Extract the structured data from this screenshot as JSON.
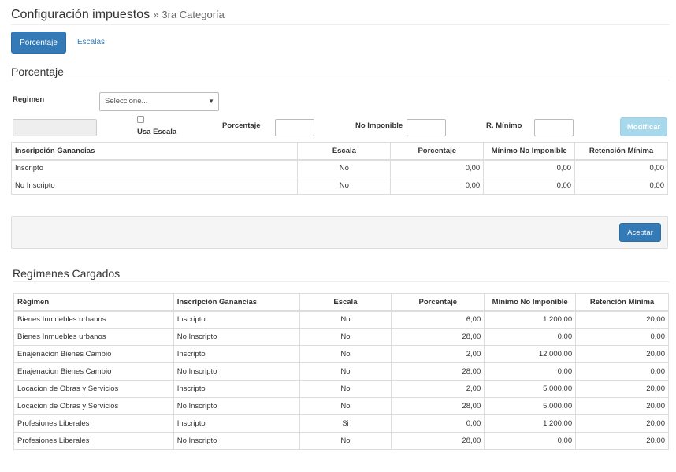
{
  "header": {
    "title": "Configuración impuestos",
    "subtitle": "» 3ra Categoría"
  },
  "tabs": [
    {
      "label": "Porcentaje",
      "active": true
    },
    {
      "label": "Escalas",
      "active": false
    }
  ],
  "section_porcentaje": {
    "title": "Porcentaje"
  },
  "form": {
    "regimen_label": "Regimen",
    "regimen_select": "Seleccione...",
    "usa_escala_label": "Usa Escala",
    "porcentaje_label": "Porcentaje",
    "no_imponible_label": "No Imponible",
    "r_minimo_label": "R. Mínimo",
    "modificar_label": "Modificar"
  },
  "tabla_inscripcion": {
    "headers": [
      "Inscripción Ganancias",
      "Escala",
      "Porcentaje",
      "Mínimo No Imponible",
      "Retención Mínima"
    ],
    "rows": [
      [
        "Inscripto",
        "No",
        "0,00",
        "0,00",
        "0,00"
      ],
      [
        "No Inscripto",
        "No",
        "0,00",
        "0,00",
        "0,00"
      ]
    ]
  },
  "footer": {
    "aceptar_label": "Aceptar"
  },
  "section_regimenes": {
    "title": "Regímenes Cargados"
  },
  "tabla_regimenes": {
    "headers": [
      "Régimen",
      "Inscripción Ganancias",
      "Escala",
      "Porcentaje",
      "Mínimo No Imponible",
      "Retención Mínima"
    ],
    "rows": [
      [
        "Bienes Inmuebles urbanos",
        "Inscripto",
        "No",
        "6,00",
        "1.200,00",
        "20,00"
      ],
      [
        "Bienes Inmuebles urbanos",
        "No Inscripto",
        "No",
        "28,00",
        "0,00",
        "0,00"
      ],
      [
        "Enajenacion Bienes Cambio",
        "Inscripto",
        "No",
        "2,00",
        "12.000,00",
        "20,00"
      ],
      [
        "Enajenacion Bienes Cambio",
        "No Inscripto",
        "No",
        "28,00",
        "0,00",
        "0,00"
      ],
      [
        "Locacion de Obras y Servicios",
        "Inscripto",
        "No",
        "2,00",
        "5.000,00",
        "20,00"
      ],
      [
        "Locacion de Obras y Servicios",
        "No Inscripto",
        "No",
        "28,00",
        "5.000,00",
        "20,00"
      ],
      [
        "Profesiones Liberales",
        "Inscripto",
        "Si",
        "0,00",
        "1.200,00",
        "20,00"
      ],
      [
        "Profesiones Liberales",
        "No Inscripto",
        "No",
        "28,00",
        "0,00",
        "20,00"
      ]
    ]
  },
  "colors": {
    "primary": "#337ab7",
    "info_disabled": "#a7d8ec",
    "panel": "#f5f5f5"
  }
}
